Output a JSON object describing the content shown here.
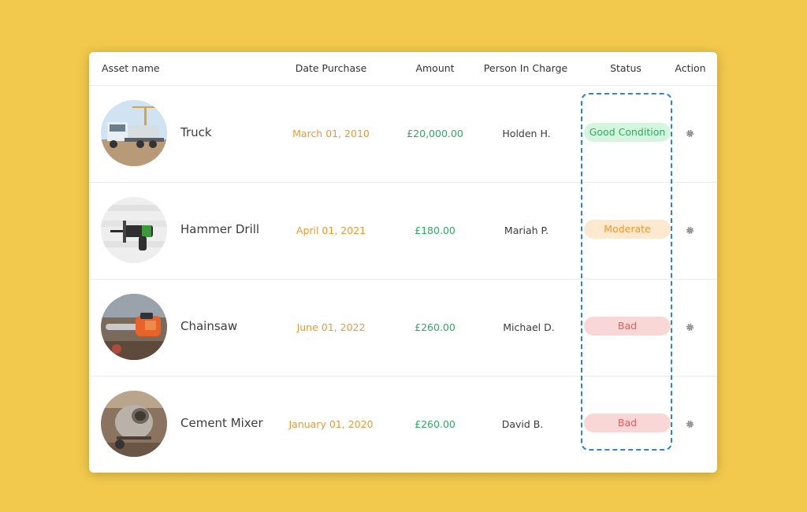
{
  "table": {
    "headers": {
      "asset_name": "Asset name",
      "date_purchase": "Date Purchase",
      "amount": "Amount",
      "person_in_charge": "Person In Charge",
      "status": "Status",
      "action": "Action"
    },
    "rows": [
      {
        "name": "Truck",
        "date": "March 01, 2010",
        "amount": "£20,000.00",
        "person": "Holden H.",
        "status": "Good Condition",
        "image": "truck-photo"
      },
      {
        "name": "Hammer Drill",
        "date": "April 01, 2021",
        "amount": "£180.00",
        "person": "Mariah P.",
        "status": "Moderate",
        "image": "hammer-drill-photo"
      },
      {
        "name": "Chainsaw",
        "date": "June 01, 2022",
        "amount": "£260.00",
        "person": "Michael D.",
        "status": "Bad",
        "image": "chainsaw-photo"
      },
      {
        "name": "Cement Mixer",
        "date": "January 01, 2020",
        "amount": "£260.00",
        "person": "David B.",
        "status": "Bad",
        "image": "cement-mixer-photo"
      }
    ],
    "action_icon": "gear-icon"
  },
  "colors": {
    "background": "#F2C94C",
    "date_text": "#F2972E",
    "amount_text": "#27AE60",
    "status_good": "#27AE60",
    "status_moderate": "#F2972E",
    "status_bad": "#E35D5D",
    "highlight_dash": "#2F80ED"
  }
}
